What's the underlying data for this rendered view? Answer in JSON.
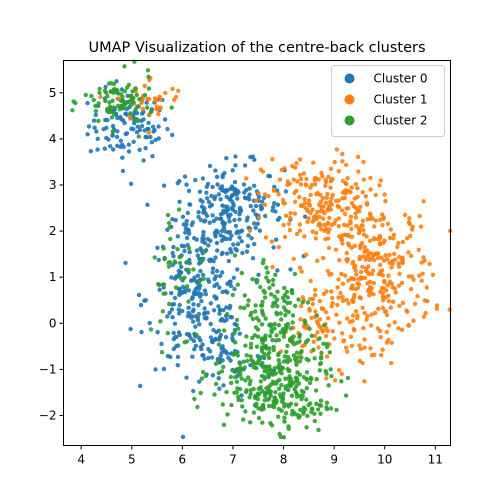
{
  "chart_data": {
    "type": "scatter",
    "title": "UMAP Visualization of the centre-back clusters",
    "xlabel": "",
    "ylabel": "",
    "xlim": [
      3.65,
      11.3
    ],
    "ylim": [
      -2.65,
      5.7
    ],
    "xticks": [
      4,
      5,
      6,
      7,
      8,
      9,
      10,
      11
    ],
    "yticks": [
      -2,
      -1,
      0,
      1,
      2,
      3,
      4,
      5
    ],
    "legend_position": "upper-right",
    "series": [
      {
        "name": "Cluster 0",
        "color": "#1f77b4",
        "clusters": [
          {
            "cx": 4.95,
            "cy": 4.3,
            "sx": 0.4,
            "sy": 0.38,
            "n": 120
          },
          {
            "cx": 6.9,
            "cy": 2.45,
            "sx": 0.55,
            "sy": 0.5,
            "n": 230
          },
          {
            "cx": 6.3,
            "cy": 0.55,
            "sx": 0.5,
            "sy": 0.75,
            "n": 240
          },
          {
            "cx": 6.85,
            "cy": -0.75,
            "sx": 0.45,
            "sy": 0.45,
            "n": 60
          }
        ]
      },
      {
        "name": "Cluster 1",
        "color": "#ff7f0e",
        "clusters": [
          {
            "cx": 5.4,
            "cy": 4.85,
            "sx": 0.35,
            "sy": 0.25,
            "n": 35
          },
          {
            "cx": 8.7,
            "cy": 2.6,
            "sx": 0.55,
            "sy": 0.5,
            "n": 210
          },
          {
            "cx": 9.85,
            "cy": 1.1,
            "sx": 0.55,
            "sy": 0.75,
            "n": 280
          },
          {
            "cx": 8.85,
            "cy": 0.0,
            "sx": 0.45,
            "sy": 0.5,
            "n": 90
          }
        ]
      },
      {
        "name": "Cluster 2",
        "color": "#2ca02c",
        "clusters": [
          {
            "cx": 4.75,
            "cy": 4.8,
            "sx": 0.35,
            "sy": 0.3,
            "n": 80
          },
          {
            "cx": 7.7,
            "cy": -1.05,
            "sx": 0.55,
            "sy": 0.5,
            "n": 260
          },
          {
            "cx": 8.15,
            "cy": -1.75,
            "sx": 0.4,
            "sy": 0.3,
            "n": 90
          },
          {
            "cx": 7.8,
            "cy": 0.3,
            "sx": 0.4,
            "sy": 0.6,
            "n": 120
          },
          {
            "cx": 5.9,
            "cy": 1.1,
            "sx": 0.3,
            "sy": 0.8,
            "n": 40
          }
        ]
      }
    ]
  }
}
